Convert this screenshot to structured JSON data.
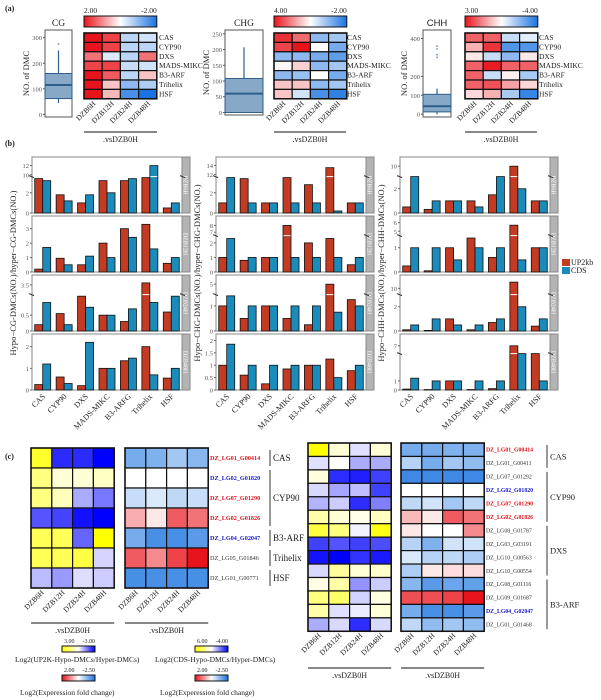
{
  "panel_labels": {
    "a": "(a)",
    "b": "(b)",
    "c": "(c)"
  },
  "colors": {
    "red": "#e8141c",
    "blue": "#1a73e0",
    "yellow": "#ffff00",
    "deep_blue": "#0000ff",
    "up2kb": "#c33b22",
    "cds": "#1a8cbb",
    "box_fill": "#88a8c8",
    "box_line": "#2e5f8a",
    "strip": "#b3b3b3"
  },
  "common": {
    "timepoints": [
      "DZB6H",
      "DZB12H",
      "DZB24H",
      "DZB48H"
    ],
    "comparison": ".vsDZB0H",
    "genes_a": [
      "CAS",
      "CYP90",
      "DXS",
      "MADS-MIKC",
      "B3-ARF",
      "Trihelix",
      "HSF"
    ],
    "genes_b": [
      "CAS",
      "CYP90",
      "DXS",
      "MADS-MIKC",
      "B3-ARFG",
      "Trihelix",
      "HSF"
    ]
  },
  "chart_data": [
    {
      "panel": "a",
      "context": "CG",
      "type": "boxplot+heatmap",
      "box": {
        "title": "CG",
        "ylabel": "NO. of DMC",
        "yticks": [
          0,
          100,
          200,
          300
        ],
        "ylim": [
          -10,
          330
        ],
        "min": 45,
        "q1": 62,
        "median": 115,
        "q3": 160,
        "max": 250,
        "outliers": [
          275
        ]
      },
      "heatmap": {
        "scale_labels": [
          "2.00",
          "-2.00"
        ],
        "range": [
          2,
          -2
        ],
        "colors": "red-white-blue",
        "values": [
          [
            2,
            1.6,
            -0.6,
            -0.4
          ],
          [
            2,
            1.6,
            -0.6,
            -0.6
          ],
          [
            1.2,
            -0.3,
            -0.6,
            1.2
          ],
          [
            1.6,
            1.6,
            -0.5,
            -0.4
          ],
          [
            2,
            1.4,
            -0.6,
            0.5
          ],
          [
            2,
            0.5,
            -1,
            -0.7
          ],
          [
            2,
            0.6,
            -1.6,
            -2
          ]
        ]
      }
    },
    {
      "panel": "a",
      "context": "CHG",
      "type": "boxplot+heatmap",
      "box": {
        "title": "CHG",
        "ylabel": "NO. of DMC",
        "yticks": [
          0,
          50,
          100,
          150,
          200,
          250
        ],
        "ylim": [
          -8,
          262
        ],
        "min": 0,
        "q1": 0,
        "median": 60,
        "q3": 108,
        "max": 207,
        "outliers": []
      },
      "heatmap": {
        "scale_labels": [
          "4.00",
          "-2.00"
        ],
        "range": [
          4,
          -2
        ],
        "colors": "red-white-blue",
        "values": [
          [
            3.5,
            2.5,
            -1,
            -0.8
          ],
          [
            3.2,
            4,
            0,
            -1.2
          ],
          [
            -1,
            -1,
            -1.2,
            -1.4
          ],
          [
            0.1,
            0.8,
            -1,
            -0.8
          ],
          [
            -1,
            -0.9,
            0,
            -1.2
          ],
          [
            1,
            1,
            -1,
            -0.8
          ],
          [
            1,
            -0.4,
            -1.6,
            -1.8
          ]
        ]
      }
    },
    {
      "panel": "a",
      "context": "CHH",
      "type": "boxplot+heatmap",
      "box": {
        "title": "CHH",
        "ylabel": "NO. of DMC",
        "yticks": [
          0,
          100,
          200,
          400
        ],
        "ylim": [
          -15,
          445
        ],
        "min": 0,
        "q1": 12,
        "median": 42,
        "q3": 105,
        "max": 135,
        "outliers": [
          300,
          315,
          345,
          360
        ]
      },
      "heatmap": {
        "scale_labels": [
          "3.00",
          "-4.00"
        ],
        "range": [
          3,
          -4
        ],
        "colors": "red-white-blue",
        "values": [
          [
            2,
            2,
            -1,
            -0.5
          ],
          [
            1,
            2.6,
            -3,
            -3
          ],
          [
            0.3,
            -1,
            -2,
            0.3
          ],
          [
            2,
            2.9,
            2,
            2
          ],
          [
            2,
            -1,
            0.2,
            -1.5
          ],
          [
            2,
            2.2,
            1.2,
            0.5
          ],
          [
            0.5,
            1,
            -1.5,
            -3.5
          ]
        ]
      }
    },
    {
      "panel": "b",
      "type": "bar",
      "context": "CG",
      "ylabel": "Hypo−CG-DMCs(NO.)/hyper−CG-DMCs(NO.)",
      "rows": [
        {
          "strip": "DZB6H",
          "yticks": [
            0,
            2,
            10,
            12
          ],
          "break": [
            3.6,
            9.6,
            13
          ],
          "up2kb": [
            3.4,
            1.8,
            1.0,
            3.2,
            3.2,
            3.5,
            0.5
          ],
          "cds": [
            3.2,
            1.2,
            1.8,
            2.0,
            3.4,
            12,
            1.0
          ]
        },
        {
          "strip": "DZB12H",
          "yticks": [
            0,
            1,
            2,
            3
          ],
          "ylim": [
            0,
            3.6
          ],
          "up2kb": [
            0.2,
            0.95,
            0.5,
            2.0,
            3.0,
            3.3,
            0.6
          ],
          "cds": [
            1.7,
            0.5,
            1.1,
            1.0,
            2.4,
            1.6,
            1.0
          ]
        },
        {
          "strip": "DZB24H",
          "yticks": [
            0,
            0.5,
            3.5
          ],
          "break": [
            1.15,
            3.0,
            3.8
          ],
          "up2kb": [
            0.2,
            0.55,
            1.1,
            0.5,
            0.3,
            3.6,
            0.6
          ],
          "cds": [
            0.9,
            0.2,
            0.75,
            0.5,
            0.7,
            0.9,
            1.1
          ]
        },
        {
          "strip": "DZB48H",
          "yticks": [
            0,
            1,
            2
          ],
          "ylim": [
            0,
            2.4
          ],
          "up2kb": [
            0.25,
            0.6,
            0.2,
            1.0,
            1.35,
            2.0,
            0.55
          ],
          "cds": [
            1.2,
            0.3,
            2.2,
            1.0,
            1.47,
            0.7,
            1.0
          ]
        }
      ]
    },
    {
      "panel": "b",
      "type": "bar",
      "context": "CHG",
      "ylabel": "Hypo−CHG-DMCs(NO.)/hyper−CHG-DMCs(NO.)",
      "rows": [
        {
          "strip": "DZB6H",
          "yticks": [
            0,
            2,
            12,
            14
          ],
          "break": [
            3.6,
            11.5,
            15
          ],
          "up2kb": [
            1,
            3.4,
            1,
            3.5,
            2.8,
            13.5,
            1
          ],
          "cds": [
            3.5,
            1,
            1,
            1,
            1,
            0.2,
            1
          ]
        },
        {
          "strip": "DZB12H",
          "yticks": [
            0,
            1,
            2,
            7,
            8
          ],
          "break": [
            2.5,
            6.5,
            8.8
          ],
          "up2kb": [
            1,
            0.8,
            1,
            8,
            2,
            2.3,
            0.5
          ],
          "cds": [
            2.3,
            1,
            1,
            1,
            1,
            1,
            1
          ]
        },
        {
          "strip": "DZB24H",
          "yticks": [
            0,
            1,
            5
          ],
          "break": [
            1.45,
            4,
            5.5
          ],
          "up2kb": [
            1,
            0.5,
            1,
            0.5,
            0.25,
            5,
            1.25
          ],
          "cds": [
            1.4,
            1,
            1,
            1,
            1,
            0.75,
            1
          ]
        },
        {
          "strip": "DZB48H",
          "yticks": [
            0,
            0.5,
            1.0,
            1.5,
            2.0
          ],
          "ylim": [
            0,
            2.1
          ],
          "up2kb": [
            1,
            0.6,
            0.25,
            0.85,
            1,
            1.25,
            0.78
          ],
          "cds": [
            1.85,
            1,
            1,
            1,
            1,
            0.5,
            1
          ]
        }
      ]
    },
    {
      "panel": "b",
      "type": "bar",
      "context": "CHH",
      "ylabel": "Hypo−CHH-DMCs(NO.)/hyper−CHH-DMCs(NO.)",
      "rows": [
        {
          "strip": "DZB6H",
          "yticks": [
            0,
            2,
            10
          ],
          "break": [
            3.0,
            8,
            11
          ],
          "up2kb": [
            0.5,
            0.3,
            1,
            1,
            1.5,
            10,
            1
          ],
          "cds": [
            3,
            1,
            1,
            0.5,
            3,
            2,
            1
          ]
        },
        {
          "strip": "DZB12H",
          "yticks": [
            0,
            1,
            5,
            6
          ],
          "break": [
            1.5,
            4.5,
            6.3
          ],
          "up2kb": [
            0.25,
            0.05,
            1,
            1.4,
            0.6,
            5.7,
            1
          ],
          "cds": [
            1,
            1,
            0.5,
            1,
            1,
            0.5,
            1
          ]
        },
        {
          "strip": "DZB24H",
          "yticks": [
            0,
            2,
            10
          ],
          "break": [
            3.0,
            8,
            13
          ],
          "up2kb": [
            0.1,
            0.05,
            1,
            0.1,
            0.7,
            12,
            0.4
          ],
          "cds": [
            0.5,
            1,
            0.5,
            0.5,
            1,
            2,
            1
          ]
        },
        {
          "strip": "DZB48H",
          "yticks": [
            0,
            1,
            7
          ],
          "break": [
            4,
            6,
            8
          ],
          "up2kb": [
            0.1,
            0.05,
            1,
            0.05,
            0.15,
            7,
            4
          ],
          "cds": [
            1.3,
            1,
            1,
            1,
            1,
            4,
            1
          ]
        }
      ]
    },
    {
      "panel": "c",
      "type": "heatmap",
      "block": "left",
      "genes": [
        {
          "id": "DZ_LG01_G00414",
          "color": "red",
          "methyl": [
            2.5,
            -2.5,
            -2.5,
            -3
          ],
          "expr": [
            -1.5,
            -1.4,
            -1,
            -1.3
          ]
        },
        {
          "id": "DZ_LG02_G01820",
          "color": "blue",
          "methyl": [
            1.5,
            0.5,
            0.5,
            0.7
          ],
          "expr": [
            0,
            0,
            0,
            0
          ]
        },
        {
          "id": "DZ_LG07_G01290",
          "color": "red",
          "methyl": [
            1.5,
            0.8,
            -1,
            -1.6
          ],
          "expr": [
            -0.6,
            -0.4,
            -0.7,
            -0.6
          ]
        },
        {
          "id": "DZ_LG02_G01826",
          "color": "red",
          "methyl": [
            -2,
            -2.2,
            -2.8,
            -3
          ],
          "expr": [
            0.7,
            0.2,
            1.4,
            1.2
          ]
        },
        {
          "id": "DZ_LG04_G02047",
          "color": "blue",
          "methyl": [
            2,
            2,
            -1.8,
            3
          ],
          "expr": [
            -1.5,
            -2,
            -2,
            -1.8
          ]
        },
        {
          "id": "DZ_LG05_G01846",
          "color": "black",
          "methyl": [
            2,
            2,
            2.2,
            -0.5
          ],
          "expr": [
            1.4,
            1,
            1.6,
            2
          ]
        },
        {
          "id": "DZ_LG01_G00771",
          "color": "black",
          "methyl": [
            -0.8,
            -1.2,
            -0.4,
            -0.6
          ],
          "expr": [
            -2,
            -2,
            -2,
            -2
          ]
        }
      ],
      "groups": [
        {
          "label": "CAS",
          "rows": [
            0,
            0
          ]
        },
        {
          "label": "CYP90",
          "rows": [
            1,
            3
          ]
        },
        {
          "label": "B3-ARF",
          "rows": [
            4,
            4
          ]
        },
        {
          "label": "Trihelix",
          "rows": [
            5,
            5
          ]
        },
        {
          "label": "HSF",
          "rows": [
            6,
            6
          ]
        }
      ],
      "methyl_scale": {
        "labels": [
          "3.00",
          "-3.00"
        ],
        "range": [
          3,
          -3
        ],
        "title": "Log2(UP2K-Hypo-DMCs/Hyper-DMCs)"
      },
      "expr_scale": {
        "labels": [
          "2.00",
          "-2.50"
        ],
        "range": [
          2,
          -2.5
        ],
        "title": "Log2(Experession fold change)"
      }
    },
    {
      "panel": "c",
      "type": "heatmap",
      "block": "right",
      "genes": [
        {
          "id": "DZ_LG01_G00414",
          "color": "red",
          "methyl": [
            6,
            1,
            -0.5,
            1
          ],
          "expr": [
            -1.5,
            -1.5,
            -1.4,
            -1.4
          ]
        },
        {
          "id": "DZ_LG01_G00411",
          "color": "black",
          "methyl": [
            -0.5,
            0,
            -1.3,
            -1.3
          ],
          "expr": [
            -0.8,
            -1.5,
            -1,
            -1.2
          ]
        },
        {
          "id": "DZ_LG07_G01292",
          "color": "black",
          "methyl": [
            0.8,
            -3.3,
            -3.5,
            -3
          ],
          "expr": [
            -2.1,
            -2.1,
            -2.1,
            -2.1
          ]
        },
        {
          "id": "DZ_LG02_G01820",
          "color": "blue",
          "methyl": [
            -0.6,
            -1.4,
            -1,
            -3
          ],
          "expr": [
            0,
            0,
            0,
            0
          ]
        },
        {
          "id": "DZ_LG07_G01290",
          "color": "red",
          "methyl": [
            -1.2,
            -0.8,
            -3.3,
            -2
          ],
          "expr": [
            -0.7,
            -0.5,
            -1,
            -0.7
          ]
        },
        {
          "id": "DZ_LG02_G01826",
          "color": "red",
          "methyl": [
            2,
            1,
            0.5,
            1.5
          ],
          "expr": [
            0.6,
            0.2,
            1.4,
            1.2
          ]
        },
        {
          "id": "DZ_LG08_G01787",
          "color": "black",
          "methyl": [
            4.5,
            3,
            -0.2,
            5.5
          ],
          "expr": [
            0.2,
            0,
            0,
            1
          ]
        },
        {
          "id": "DZ_LG03_G03191",
          "color": "black",
          "methyl": [
            -3,
            -2.7,
            -3,
            -2.8
          ],
          "expr": [
            -0.8,
            -1.4,
            -0.5,
            -0.5
          ]
        },
        {
          "id": "DZ_LG10_G00563",
          "color": "black",
          "methyl": [
            -3.7,
            -4,
            -3.2,
            -3.6
          ],
          "expr": [
            -0.4,
            -0.8,
            -0.7,
            -0.9
          ]
        },
        {
          "id": "DZ_LG10_G00554",
          "color": "black",
          "methyl": [
            -0.6,
            2.3,
            1,
            1.2
          ],
          "expr": [
            -0.9,
            0.2,
            0.3,
            0.3
          ]
        },
        {
          "id": "DZ_LG08_G01116",
          "color": "black",
          "methyl": [
            0.6,
            2,
            -1.7,
            -0.8
          ],
          "expr": [
            -1.3,
            -1.8,
            -1.6,
            -1.7
          ]
        },
        {
          "id": "DZ_LG09_G01687",
          "color": "black",
          "methyl": [
            3,
            3.5,
            -0.7,
            0.7
          ],
          "expr": [
            1.5,
            1.5,
            1.6,
            2
          ]
        },
        {
          "id": "DZ_LG04_G02047",
          "color": "blue",
          "methyl": [
            2,
            -0.5,
            -0.3,
            1
          ],
          "expr": [
            -1.5,
            -2,
            -2,
            -1.8
          ]
        },
        {
          "id": "DZ_LG01_G01468",
          "color": "black",
          "methyl": [
            -1.3,
            -0.6,
            -3.3,
            -0.6
          ],
          "expr": [
            -0.7,
            -1.2,
            -1,
            -1.2
          ]
        }
      ],
      "groups": [
        {
          "label": "CAS",
          "rows": [
            0,
            1
          ]
        },
        {
          "label": "CYP90",
          "rows": [
            2,
            5
          ]
        },
        {
          "label": "DXS",
          "rows": [
            6,
            9
          ]
        },
        {
          "label": "B3-ARF",
          "rows": [
            10,
            13
          ]
        }
      ],
      "methyl_scale": {
        "labels": [
          "6.00",
          "-4.00"
        ],
        "range": [
          6,
          -4
        ],
        "title": "Log2(CDS-Hypo-DMCs/Hyper-DMCs)"
      },
      "expr_scale": {
        "labels": [
          "2.00",
          "-2.50"
        ],
        "range": [
          2,
          -2.5
        ],
        "title": "Log2(Experession fold change)"
      }
    }
  ],
  "legend": {
    "items": [
      {
        "label": "UP2kb",
        "color_key": "up2kb"
      },
      {
        "label": "CDS",
        "color_key": "cds"
      }
    ],
    "placement": "right"
  }
}
